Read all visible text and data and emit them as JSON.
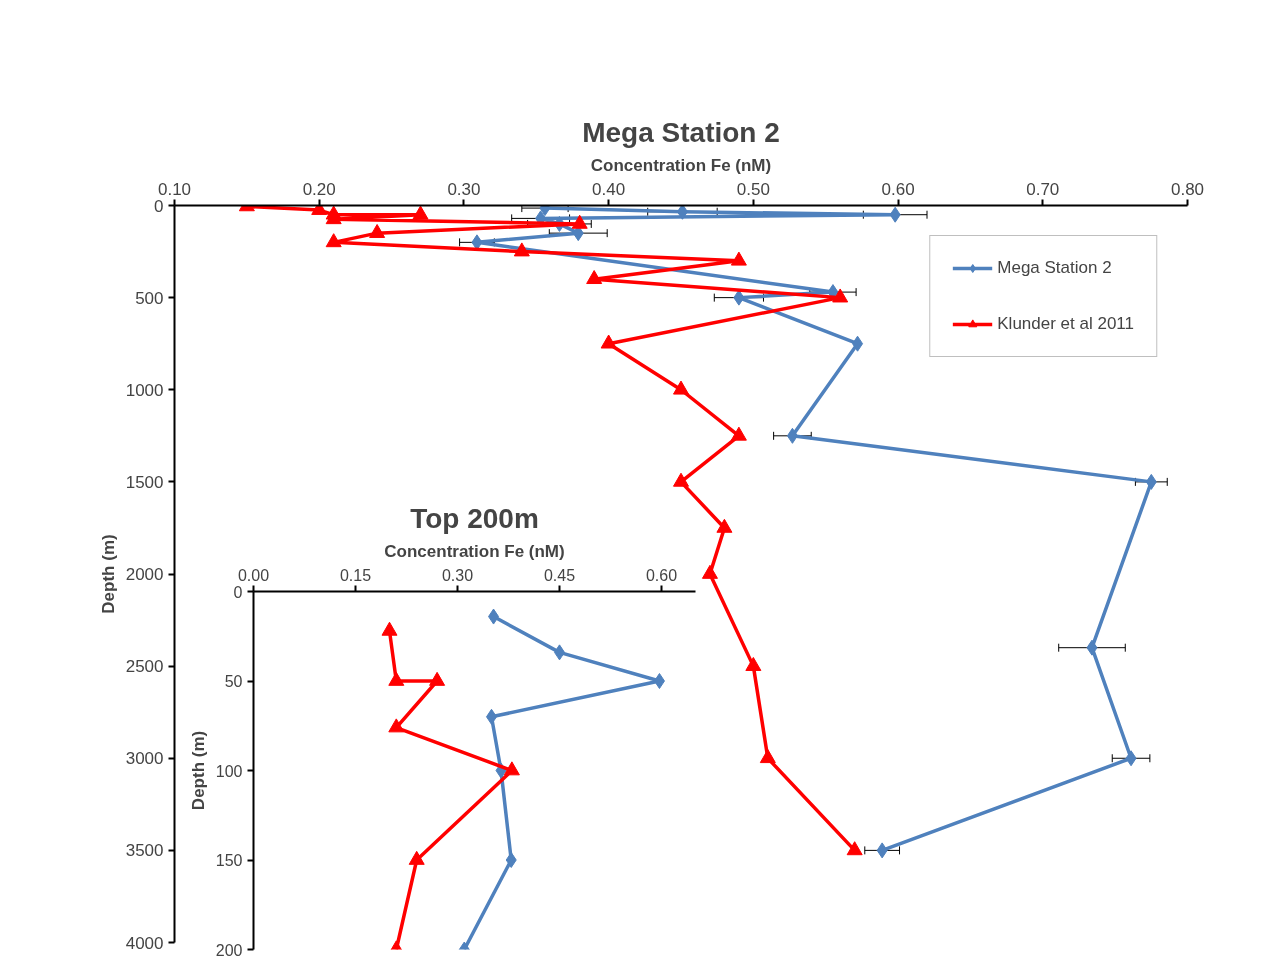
{
  "chart_data": [
    {
      "type": "line",
      "title": "Mega Station 2",
      "xlabel": "Concentration Fe (nM)",
      "ylabel": "Depth (m)",
      "xlim": [
        0.1,
        0.8
      ],
      "ylim": [
        4000,
        0
      ],
      "xticks": [
        {
          "value": 0.1,
          "label": "0.10"
        },
        {
          "value": 0.2,
          "label": "0.20"
        },
        {
          "value": 0.3,
          "label": "0.30"
        },
        {
          "value": 0.4,
          "label": "0.40"
        },
        {
          "value": 0.5,
          "label": "0.50"
        },
        {
          "value": 0.6,
          "label": "0.60"
        },
        {
          "value": 0.7,
          "label": "0.70"
        },
        {
          "value": 0.8,
          "label": "0.80"
        }
      ],
      "yticks": [
        0,
        500,
        1000,
        1500,
        2000,
        2500,
        3000,
        3500,
        4000
      ],
      "grid": false,
      "legend": "top right",
      "series": [
        {
          "name": "Mega Station 2",
          "color": "#4f81bd",
          "marker": "diamond",
          "x": [
            0.356,
            0.451,
            0.598,
            0.353,
            0.366,
            0.379,
            0.309,
            0.555,
            0.49,
            0.572,
            0.527,
            0.775,
            0.734,
            0.761,
            0.589
          ],
          "values": [
            14,
            34,
            50,
            70,
            100,
            150,
            200,
            470,
            500,
            750,
            1250,
            1500,
            2400,
            3000,
            3500
          ],
          "xerrors": [
            0.016,
            0.024,
            0.022,
            0.02,
            0.022,
            0.02,
            0.012,
            0.016,
            0.017,
            null,
            0.013,
            0.011,
            0.023,
            0.013,
            0.012
          ]
        },
        {
          "name": "Klunder et al 2011",
          "color": "#ff0000",
          "marker": "triangle",
          "x": [
            0.15,
            0.2,
            0.21,
            0.27,
            0.21,
            0.38,
            0.24,
            0.21,
            0.34,
            0.49,
            0.39,
            0.56,
            0.4,
            0.45,
            0.49,
            0.45,
            0.48,
            0.47,
            0.5,
            0.51,
            0.57
          ],
          "values": [
            5,
            25,
            50,
            50,
            75,
            100,
            150,
            200,
            250,
            300,
            400,
            500,
            750,
            1000,
            1250,
            1500,
            1750,
            2000,
            2500,
            3000,
            3500
          ]
        }
      ]
    },
    {
      "type": "line",
      "title": "Top 200m",
      "xlabel": "Concentration Fe (nM)",
      "ylabel": "Depth (m)",
      "xlim": [
        0,
        0.65
      ],
      "ylim": [
        200,
        0
      ],
      "xticks": [
        {
          "value": 0,
          "label": "0.00"
        },
        {
          "value": 0.15,
          "label": "0.15"
        },
        {
          "value": 0.3,
          "label": "0.30"
        },
        {
          "value": 0.45,
          "label": "0.45"
        },
        {
          "value": 0.6,
          "label": "0.60"
        }
      ],
      "yticks": [
        0,
        50,
        100,
        150,
        200
      ],
      "grid": false,
      "series": [
        {
          "color": "#4f81bd",
          "marker": "diamond",
          "x": [
            0.353,
            0.45,
            0.597,
            0.35,
            0.364,
            0.379,
            0.31
          ],
          "values": [
            14,
            34,
            50,
            70,
            100,
            150,
            200
          ]
        },
        {
          "color": "#ff0000",
          "marker": "triangle",
          "x": [
            0.2,
            0.21,
            0.27,
            0.21,
            0.38,
            0.24,
            0.21
          ],
          "values": [
            22,
            50,
            50,
            76,
            100,
            150,
            200
          ]
        }
      ]
    }
  ]
}
